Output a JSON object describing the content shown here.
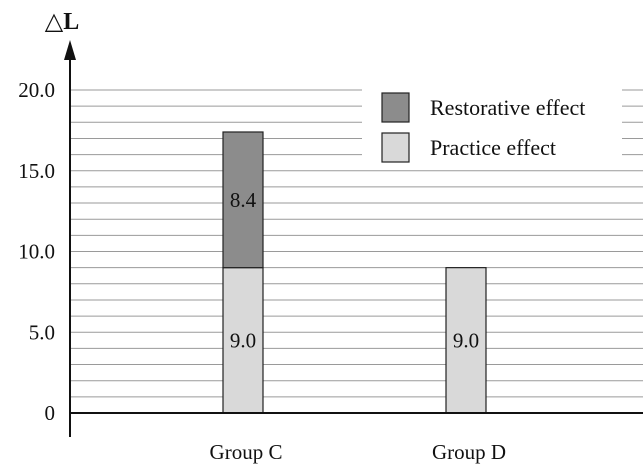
{
  "chart_data": {
    "type": "bar",
    "stacked": true,
    "ylabel": "△L",
    "ylim": [
      0,
      20
    ],
    "yticks": [
      "0",
      "5.0",
      "10.0",
      "15.0",
      "20.0"
    ],
    "grid": true,
    "legend_position": "top-right",
    "categories": [
      "Group C",
      "Group D"
    ],
    "series": [
      {
        "name": "Practice effect",
        "values": [
          9.0,
          9.0
        ],
        "labels": [
          "9.0",
          "9.0"
        ],
        "color": "#d9d9d9"
      },
      {
        "name": "Restorative effect",
        "values": [
          8.4,
          0
        ],
        "labels": [
          "8.4",
          ""
        ],
        "color": "#8c8c8c"
      }
    ],
    "legend": [
      "Restorative effect",
      "Practice effect"
    ]
  }
}
